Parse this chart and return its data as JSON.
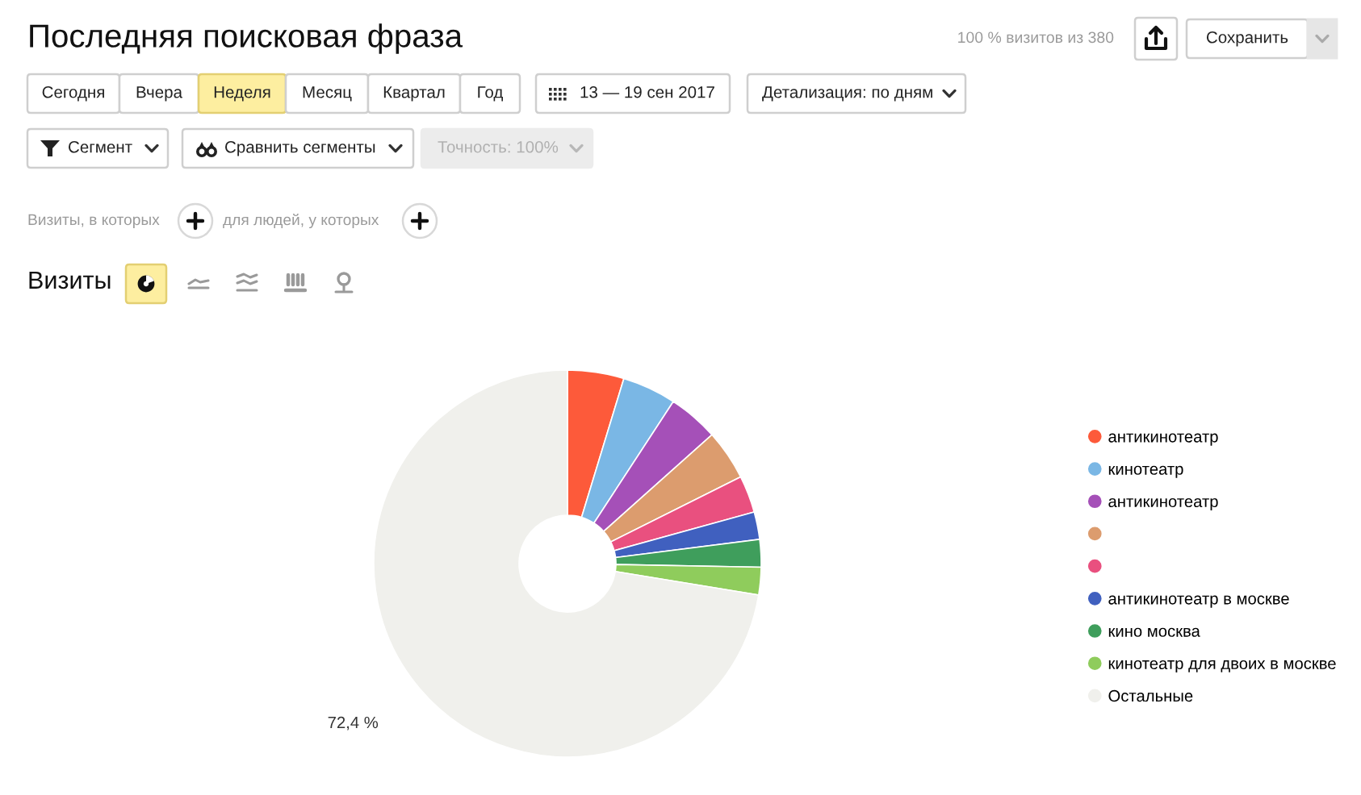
{
  "chart_data": {
    "type": "donut",
    "title": "Последняя поисковая фраза",
    "subtitle": "Визиты",
    "annotations": [
      "100 % визитов из 380",
      "Сохранить",
      "Сегодня",
      "Вчера",
      "Неделя",
      "Месяц",
      "Квартал",
      "Год",
      "13 — 19 сен 2017",
      "Детализация: по дням",
      "Сегмент",
      "Сравнить сегменты",
      "Точность: 100%",
      "Визиты, в которых",
      "для людей, у которых"
    ],
    "categories": [
      "антикинотеатр",
      "кинотеатр",
      "антикинотеатр",
      null,
      null,
      "антикинотеатр в москве",
      "кино москва",
      "кинотеатр для двоих в москве",
      "Остальные"
    ],
    "values": [
      4.7,
      4.5,
      4.2,
      4.2,
      3.1,
      2.3,
      2.3,
      2.3,
      72.4
    ],
    "colors": [
      "#fd5a3a",
      "#7ab7e5",
      "#a550b8",
      "#dc9c6e",
      "#e9507f",
      "#4060bf",
      "#3f9e5c",
      "#8fcc5c",
      "#f0f0ec"
    ],
    "value_labels": [
      null,
      null,
      null,
      null,
      null,
      null,
      null,
      null,
      "72,4 %"
    ],
    "legend": "right"
  }
}
